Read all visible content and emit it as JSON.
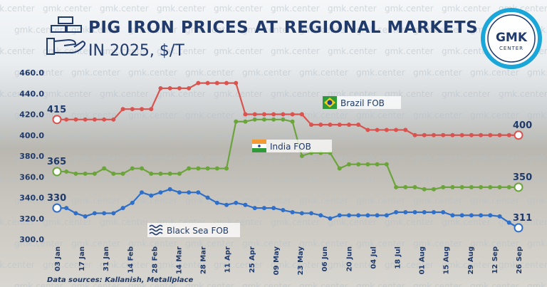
{
  "header": {
    "title": "PIG IRON PRICES AT REGIONAL MARKETS",
    "subtitle": "IN 2025, $/T",
    "watermark": "gmk.center",
    "logo_main": "GMK",
    "logo_sub": "CENTER",
    "logo_ring_color": "#1aa6d9"
  },
  "source": "Data sources: Kallanish, Metallplace",
  "chart_data": {
    "type": "line",
    "y_ticks": [
      "460.0",
      "440.0",
      "420.0",
      "400.0",
      "380.0",
      "360.0",
      "340.0",
      "320.0",
      "300.0"
    ],
    "ylim": [
      300,
      460
    ],
    "x_ticks": [
      "03 Jan",
      "17 Jan",
      "31 Jan",
      "14 Feb",
      "28 Feb",
      "14 Mar",
      "28 Mar",
      "11 Apr",
      "25 Apr",
      "09 May",
      "23 May",
      "06 Jun",
      "20 Jun",
      "04 Jul",
      "18 Jul",
      "01 Aug",
      "15 Aug",
      "29 Aug",
      "12 Sep",
      "26 Sep"
    ],
    "series": [
      {
        "name": "Brazil FOB",
        "color": "#d9534f",
        "start_label": "415",
        "end_label": "400",
        "values": [
          415,
          415,
          415,
          415,
          415,
          415,
          415,
          425,
          425,
          425,
          425,
          445,
          445,
          445,
          445,
          450,
          450,
          450,
          450,
          450,
          420,
          420,
          420,
          420,
          420,
          420,
          420,
          410,
          410,
          410,
          410,
          410,
          410,
          405,
          405,
          405,
          405,
          405,
          400,
          400,
          400,
          400,
          400,
          400,
          400,
          400,
          400,
          400,
          400,
          400
        ]
      },
      {
        "name": "India FOB",
        "color": "#6ba43a",
        "start_label": "365",
        "end_label": "350",
        "values": [
          365,
          365,
          363,
          363,
          363,
          368,
          363,
          363,
          368,
          368,
          363,
          363,
          363,
          363,
          368,
          368,
          368,
          368,
          368,
          413,
          413,
          415,
          415,
          415,
          415,
          413,
          380,
          383,
          383,
          383,
          368,
          372,
          372,
          372,
          372,
          372,
          350,
          350,
          350,
          348,
          348,
          350,
          350,
          350,
          350,
          350,
          350,
          350,
          350,
          350
        ]
      },
      {
        "name": "Black Sea FOB",
        "color": "#2f6fc7",
        "start_label": "330",
        "end_label": "311",
        "values": [
          330,
          330,
          325,
          322,
          325,
          325,
          325,
          330,
          335,
          345,
          342,
          345,
          348,
          345,
          345,
          345,
          340,
          335,
          333,
          335,
          333,
          330,
          330,
          330,
          328,
          326,
          325,
          325,
          323,
          320,
          323,
          323,
          323,
          323,
          323,
          323,
          326,
          326,
          326,
          326,
          326,
          326,
          323,
          323,
          323,
          323,
          323,
          322,
          316,
          311
        ]
      }
    ]
  }
}
